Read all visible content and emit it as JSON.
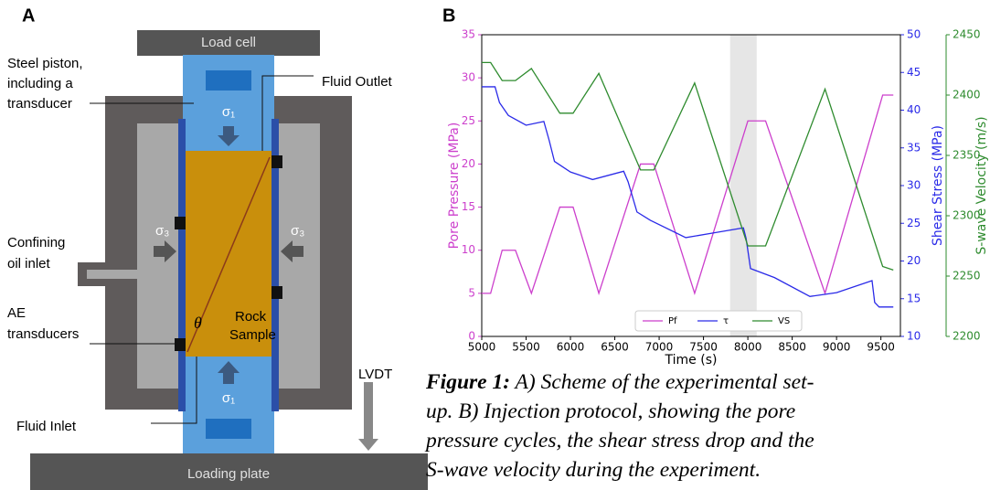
{
  "panel_a": {
    "label": "A",
    "load_cell": "Load cell",
    "steel_piston": [
      "Steel piston,",
      "including a",
      "transducer"
    ],
    "fluid_outlet": "Fluid Outlet",
    "confining": [
      "Confining",
      "oil inlet"
    ],
    "ae": [
      "AE",
      "transducers"
    ],
    "fluid_inlet": "Fluid Inlet",
    "lvdt": "LVDT",
    "loading_plate": "Loading plate",
    "rock_sample": [
      "Rock",
      "Sample"
    ],
    "theta": "θ",
    "sigma1_top": "σ₁",
    "sigma1_bottom": "σ₁",
    "sigma3_left": "σ₃",
    "sigma3_right": "σ₃"
  },
  "panel_b_label": "B",
  "chart_data": {
    "type": "line",
    "xlabel": "Time (s)",
    "ylabel": "Pore Pressure (MPa)",
    "y2label": "Shear Stress (MPa)",
    "y3label": "S-wave Velocity (m/s)",
    "xlim": [
      5000,
      9720
    ],
    "xticks": [
      5000,
      5500,
      6000,
      6500,
      7000,
      7500,
      8000,
      8500,
      9000,
      9500
    ],
    "ylim": [
      0,
      35
    ],
    "yticks": [
      0,
      5,
      10,
      15,
      20,
      25,
      30,
      35
    ],
    "y2lim": [
      10,
      50
    ],
    "y2ticks": [
      10,
      15,
      20,
      25,
      30,
      35,
      40,
      45,
      50
    ],
    "y3lim": [
      2200,
      2450
    ],
    "y3ticks": [
      2200,
      2250,
      2300,
      2350,
      2400,
      2450
    ],
    "highlight": [
      7800,
      8100
    ],
    "legend": "lower center",
    "series": [
      {
        "name": "Pf",
        "color": "#cc3fcc",
        "axis": "y",
        "x": [
          5000,
          5100,
          5230,
          5380,
          5560,
          5880,
          6030,
          6320,
          6790,
          6940,
          7400,
          8000,
          8200,
          8870,
          9520,
          9640
        ],
        "values": [
          5,
          5,
          10,
          10,
          5,
          15,
          15,
          5,
          20,
          20,
          5,
          25,
          25,
          5,
          28,
          28
        ]
      },
      {
        "name": "τ",
        "color": "#2a2ae8",
        "axis": "y2",
        "x": [
          5000,
          5150,
          5200,
          5300,
          5500,
          5700,
          5760,
          5820,
          6000,
          6250,
          6600,
          6650,
          6750,
          6900,
          7300,
          7600,
          7950,
          7980,
          8030,
          8300,
          8700,
          9000,
          9400,
          9430,
          9480,
          9640
        ],
        "values": [
          43.1,
          43.1,
          41,
          39.3,
          38,
          38.5,
          36,
          33.2,
          31.8,
          30.8,
          31.9,
          30.5,
          26.5,
          25.4,
          23.1,
          23.7,
          24.4,
          23,
          19,
          17.8,
          15.3,
          15.8,
          17.4,
          14.5,
          13.9,
          13.9
        ]
      },
      {
        "name": "VS",
        "color": "#2e8b2e",
        "axis": "y3",
        "x": [
          5000,
          5100,
          5230,
          5380,
          5560,
          5880,
          6030,
          6320,
          6790,
          6940,
          7400,
          8000,
          8200,
          8870,
          9520,
          9640
        ],
        "values": [
          2427,
          2427,
          2412,
          2412,
          2422,
          2385,
          2385,
          2418,
          2338,
          2338,
          2410,
          2275,
          2275,
          2405,
          2258,
          2255
        ]
      }
    ]
  },
  "caption": {
    "label": "Figure 1:",
    "lines": [
      "A) Scheme of the experimental set-",
      "up. B) Injection protocol, showing the pore",
      "pressure cycles, the shear stress drop and the",
      "S-wave velocity during the experiment."
    ]
  }
}
